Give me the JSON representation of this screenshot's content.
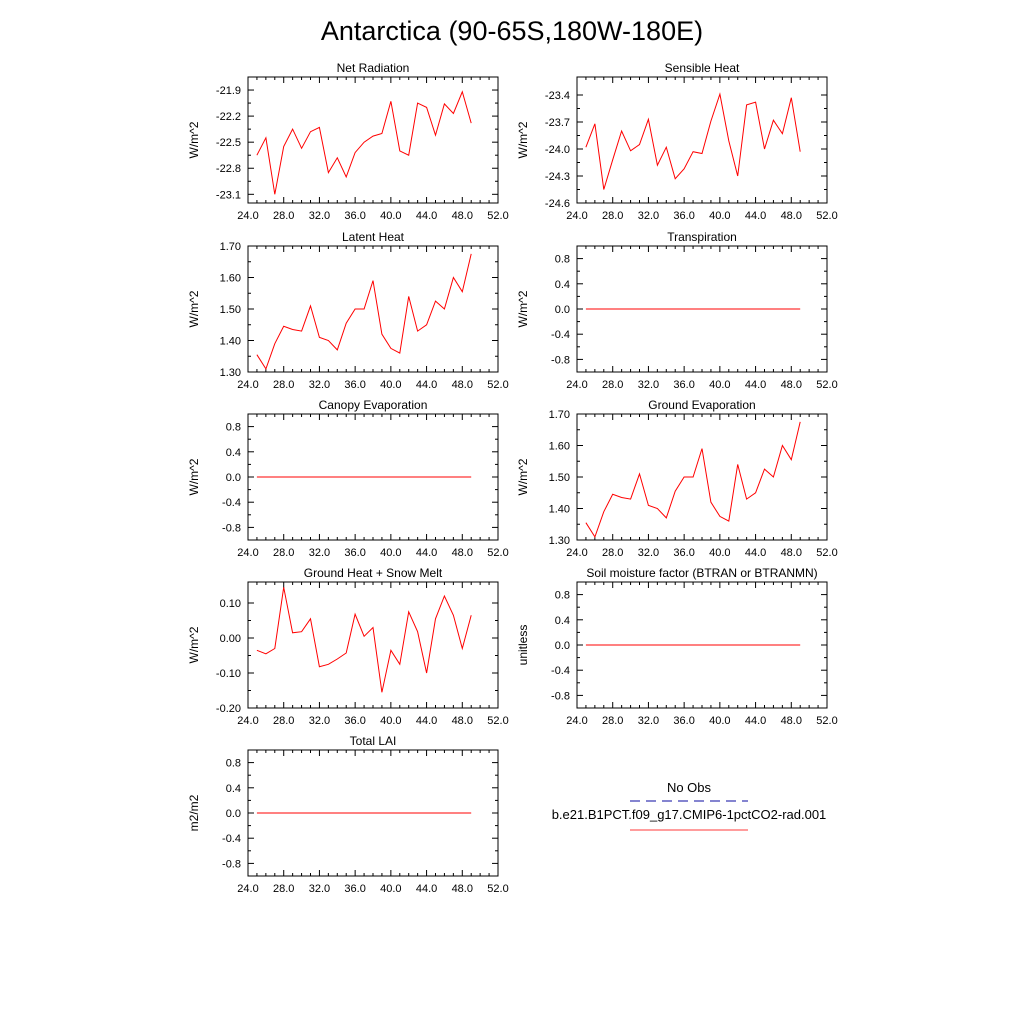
{
  "page": {
    "title": "Antarctica (90-65S,180W-180E)"
  },
  "legend": {
    "entries": [
      {
        "label": "No Obs",
        "color": "#3b3bb3",
        "style": "dashed"
      },
      {
        "label": "b.e21.B1PCT.f09_g17.CMIP6-1pctCO2-rad.001",
        "color": "#ff6060",
        "style": "solid"
      }
    ]
  },
  "chart_data": [
    {
      "type": "line",
      "title": "Net Radiation",
      "ylabel": "W/m^2",
      "xlim": [
        24,
        52
      ],
      "ylim": [
        -23.2,
        -21.75
      ],
      "xticks": [
        "24.0",
        "28.0",
        "32.0",
        "36.0",
        "40.0",
        "44.0",
        "48.0",
        "52.0"
      ],
      "yticks": [
        "-21.9",
        "-22.2",
        "-22.5",
        "-22.8",
        "-23.1"
      ],
      "ytick_values": [
        -21.9,
        -22.2,
        -22.5,
        -22.8,
        -23.1
      ],
      "x": [
        25,
        26,
        27,
        28,
        29,
        30,
        31,
        32,
        33,
        34,
        35,
        36,
        37,
        38,
        39,
        40,
        41,
        42,
        43,
        44,
        45,
        46,
        47,
        48,
        49
      ],
      "values": [
        -22.65,
        -22.45,
        -23.1,
        -22.55,
        -22.35,
        -22.57,
        -22.38,
        -22.33,
        -22.85,
        -22.68,
        -22.9,
        -22.62,
        -22.5,
        -22.43,
        -22.4,
        -22.03,
        -22.6,
        -22.65,
        -22.05,
        -22.1,
        -22.42,
        -22.06,
        -22.17,
        -21.92,
        -22.28
      ]
    },
    {
      "type": "line",
      "title": "Sensible Heat",
      "ylabel": "W/m^2",
      "xlim": [
        24,
        52
      ],
      "ylim": [
        -24.6,
        -23.2
      ],
      "xticks": [
        "24.0",
        "28.0",
        "32.0",
        "36.0",
        "40.0",
        "44.0",
        "48.0",
        "52.0"
      ],
      "yticks": [
        "-23.4",
        "-23.7",
        "-24.0",
        "-24.3",
        "-24.6"
      ],
      "ytick_values": [
        -23.4,
        -23.7,
        -24.0,
        -24.3,
        -24.6
      ],
      "x": [
        25,
        26,
        27,
        28,
        29,
        30,
        31,
        32,
        33,
        34,
        35,
        36,
        37,
        38,
        39,
        40,
        41,
        42,
        43,
        44,
        45,
        46,
        47,
        48,
        49
      ],
      "values": [
        -23.98,
        -23.72,
        -24.45,
        -24.12,
        -23.8,
        -24.02,
        -23.95,
        -23.67,
        -24.18,
        -23.98,
        -24.33,
        -24.22,
        -24.03,
        -24.05,
        -23.69,
        -23.39,
        -23.91,
        -24.3,
        -23.51,
        -23.48,
        -24.0,
        -23.68,
        -23.83,
        -23.43,
        -24.03
      ]
    },
    {
      "type": "line",
      "title": "Latent Heat",
      "ylabel": "W/m^2",
      "xlim": [
        24,
        52
      ],
      "ylim": [
        1.3,
        1.7
      ],
      "xticks": [
        "24.0",
        "28.0",
        "32.0",
        "36.0",
        "40.0",
        "44.0",
        "48.0",
        "52.0"
      ],
      "yticks": [
        "1.70",
        "1.60",
        "1.50",
        "1.40",
        "1.30"
      ],
      "ytick_values": [
        1.7,
        1.6,
        1.5,
        1.4,
        1.3
      ],
      "x": [
        25,
        26,
        27,
        28,
        29,
        30,
        31,
        32,
        33,
        34,
        35,
        36,
        37,
        38,
        39,
        40,
        41,
        42,
        43,
        44,
        45,
        46,
        47,
        48,
        49
      ],
      "values": [
        1.355,
        1.31,
        1.39,
        1.445,
        1.435,
        1.43,
        1.51,
        1.41,
        1.4,
        1.37,
        1.455,
        1.5,
        1.5,
        1.59,
        1.42,
        1.375,
        1.36,
        1.54,
        1.43,
        1.45,
        1.525,
        1.5,
        1.6,
        1.555,
        1.675
      ]
    },
    {
      "type": "line",
      "title": "Transpiration",
      "ylabel": "W/m^2",
      "xlim": [
        24,
        52
      ],
      "ylim": [
        -1.0,
        1.0
      ],
      "xticks": [
        "24.0",
        "28.0",
        "32.0",
        "36.0",
        "40.0",
        "44.0",
        "48.0",
        "52.0"
      ],
      "yticks": [
        "0.8",
        "0.4",
        "0.0",
        "-0.4",
        "-0.8"
      ],
      "ytick_values": [
        0.8,
        0.4,
        0.0,
        -0.4,
        -0.8
      ],
      "x": [
        25,
        49
      ],
      "values": [
        0.0,
        0.0
      ]
    },
    {
      "type": "line",
      "title": "Canopy Evaporation",
      "ylabel": "W/m^2",
      "xlim": [
        24,
        52
      ],
      "ylim": [
        -1.0,
        1.0
      ],
      "xticks": [
        "24.0",
        "28.0",
        "32.0",
        "36.0",
        "40.0",
        "44.0",
        "48.0",
        "52.0"
      ],
      "yticks": [
        "0.8",
        "0.4",
        "0.0",
        "-0.4",
        "-0.8"
      ],
      "ytick_values": [
        0.8,
        0.4,
        0.0,
        -0.4,
        -0.8
      ],
      "x": [
        25,
        49
      ],
      "values": [
        0.0,
        0.0
      ]
    },
    {
      "type": "line",
      "title": "Ground Evaporation",
      "ylabel": "W/m^2",
      "xlim": [
        24,
        52
      ],
      "ylim": [
        1.3,
        1.7
      ],
      "xticks": [
        "24.0",
        "28.0",
        "32.0",
        "36.0",
        "40.0",
        "44.0",
        "48.0",
        "52.0"
      ],
      "yticks": [
        "1.70",
        "1.60",
        "1.50",
        "1.40",
        "1.30"
      ],
      "ytick_values": [
        1.7,
        1.6,
        1.5,
        1.4,
        1.3
      ],
      "x": [
        25,
        26,
        27,
        28,
        29,
        30,
        31,
        32,
        33,
        34,
        35,
        36,
        37,
        38,
        39,
        40,
        41,
        42,
        43,
        44,
        45,
        46,
        47,
        48,
        49
      ],
      "values": [
        1.355,
        1.31,
        1.39,
        1.445,
        1.435,
        1.43,
        1.51,
        1.41,
        1.4,
        1.37,
        1.455,
        1.5,
        1.5,
        1.59,
        1.42,
        1.375,
        1.36,
        1.54,
        1.43,
        1.45,
        1.525,
        1.5,
        1.6,
        1.555,
        1.675
      ]
    },
    {
      "type": "line",
      "title": "Ground Heat + Snow Melt",
      "ylabel": "W/m^2",
      "xlim": [
        24,
        52
      ],
      "ylim": [
        -0.2,
        0.16
      ],
      "xticks": [
        "24.0",
        "28.0",
        "32.0",
        "36.0",
        "40.0",
        "44.0",
        "48.0",
        "52.0"
      ],
      "yticks": [
        "0.10",
        "0.00",
        "-0.10",
        "-0.20"
      ],
      "ytick_values": [
        0.1,
        0.0,
        -0.1,
        -0.2
      ],
      "x": [
        25,
        26,
        27,
        28,
        29,
        30,
        31,
        32,
        33,
        34,
        35,
        36,
        37,
        38,
        39,
        40,
        41,
        42,
        43,
        44,
        45,
        46,
        47,
        48,
        49
      ],
      "values": [
        -0.035,
        -0.045,
        -0.03,
        0.145,
        0.015,
        0.018,
        0.055,
        -0.082,
        -0.075,
        -0.06,
        -0.043,
        0.068,
        0.005,
        0.03,
        -0.155,
        -0.035,
        -0.075,
        0.075,
        0.018,
        -0.1,
        0.055,
        0.12,
        0.065,
        -0.03,
        0.065
      ]
    },
    {
      "type": "line",
      "title": "Soil moisture factor (BTRAN or BTRANMN)",
      "ylabel": "unitless",
      "xlim": [
        24,
        52
      ],
      "ylim": [
        -1.0,
        1.0
      ],
      "xticks": [
        "24.0",
        "28.0",
        "32.0",
        "36.0",
        "40.0",
        "44.0",
        "48.0",
        "52.0"
      ],
      "yticks": [
        "0.8",
        "0.4",
        "0.0",
        "-0.4",
        "-0.8"
      ],
      "ytick_values": [
        0.8,
        0.4,
        0.0,
        -0.4,
        -0.8
      ],
      "x": [
        25,
        49
      ],
      "values": [
        0.0,
        0.0
      ]
    },
    {
      "type": "line",
      "title": "Total LAI",
      "ylabel": "m2/m2",
      "xlim": [
        24,
        52
      ],
      "ylim": [
        -1.0,
        1.0
      ],
      "xticks": [
        "24.0",
        "28.0",
        "32.0",
        "36.0",
        "40.0",
        "44.0",
        "48.0",
        "52.0"
      ],
      "yticks": [
        "0.8",
        "0.4",
        "0.0",
        "-0.4",
        "-0.8"
      ],
      "ytick_values": [
        0.8,
        0.4,
        0.0,
        -0.4,
        -0.8
      ],
      "x": [
        25,
        49
      ],
      "values": [
        0.0,
        0.0
      ]
    }
  ]
}
